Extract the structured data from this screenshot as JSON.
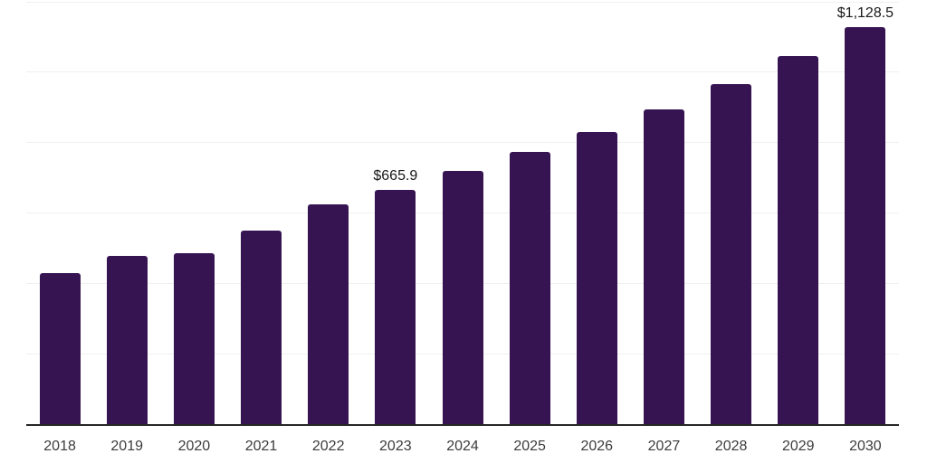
{
  "chart": {
    "background_color": "#ffffff",
    "bar_color": "#361351",
    "gridline_color": "#f0f0f0",
    "axis_line_color": "#262626",
    "tick_label_color": "#3c3c3c",
    "data_label_color": "#191919"
  },
  "chart_data": {
    "type": "bar",
    "title": "",
    "xlabel": "",
    "ylabel": "",
    "categories": [
      "2018",
      "2019",
      "2020",
      "2021",
      "2022",
      "2023",
      "2024",
      "2025",
      "2026",
      "2027",
      "2028",
      "2029",
      "2030"
    ],
    "values": [
      429,
      480,
      486,
      551,
      626,
      665.9,
      719,
      774,
      831,
      895,
      967,
      1045,
      1128.5
    ],
    "data_labels": [
      "",
      "",
      "",
      "",
      "",
      "$665.9",
      "",
      "",
      "",
      "",
      "",
      "",
      "$1,128.5"
    ],
    "ylim": [
      0,
      1200
    ],
    "gridline_step": 200,
    "grid": "horizontal-only",
    "y_tick_labels_shown": false,
    "legend_position": "none"
  }
}
